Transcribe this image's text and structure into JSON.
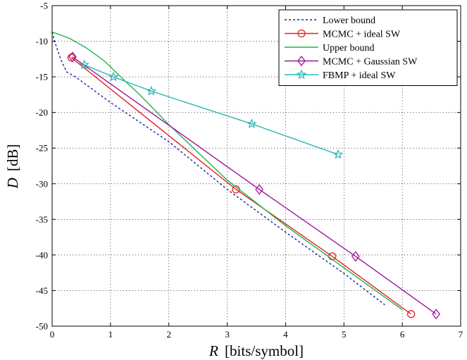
{
  "chart_data": {
    "type": "line",
    "xlabel": {
      "var": "R",
      "unit": "[bits/symbol]"
    },
    "ylabel": {
      "var": "D",
      "unit": "[dB]"
    },
    "xlim": [
      0,
      7
    ],
    "ylim": [
      -50,
      -5
    ],
    "xticks": [
      "0",
      "1",
      "2",
      "3",
      "4",
      "5",
      "6",
      "7"
    ],
    "yticks": [
      "-5",
      "-10",
      "-15",
      "-20",
      "-25",
      "-30",
      "-35",
      "-40",
      "-45",
      "-50"
    ],
    "grid": true,
    "legend_position": "top-right",
    "series": [
      {
        "name": "Lower bound",
        "color": "#1f1fa0",
        "line": "dotted",
        "marker": "none",
        "x": [
          0,
          0.05,
          0.15,
          0.25,
          0.4,
          0.7,
          1.0,
          2.0,
          3.0,
          4.0,
          5.0,
          5.7
        ],
        "y": [
          -8.7,
          -10.2,
          -12.6,
          -14.3,
          -15.0,
          -16.8,
          -18.6,
          -24.1,
          -30.8,
          -36.8,
          -42.6,
          -47.0
        ]
      },
      {
        "name": "MCMC + ideal SW",
        "color": "#e32222",
        "line": "solid",
        "marker": "circle",
        "x": [
          0.33,
          3.15,
          4.8,
          6.15
        ],
        "y": [
          -12.3,
          -30.8,
          -40.2,
          -48.3
        ]
      },
      {
        "name": "Upper bound",
        "color": "#1fb34a",
        "line": "solid",
        "marker": "none",
        "x": [
          0,
          0.3,
          0.6,
          0.9,
          1.2,
          1.5,
          2.0,
          3.0,
          4.0,
          5.0,
          6.0
        ],
        "y": [
          -8.7,
          -9.6,
          -11.0,
          -12.8,
          -15.2,
          -17.5,
          -21.7,
          -29.5,
          -35.9,
          -41.8,
          -47.7
        ]
      },
      {
        "name": "MCMC + Gaussian SW",
        "color": "#a0159a",
        "line": "solid",
        "marker": "diamond",
        "x": [
          0.35,
          3.55,
          5.2,
          6.58
        ],
        "y": [
          -12.2,
          -30.8,
          -40.2,
          -48.3
        ]
      },
      {
        "name": "FBMP + ideal SW",
        "color": "#2ab7b4",
        "line": "solid",
        "marker": "star",
        "x": [
          0.55,
          1.05,
          1.7,
          3.42,
          4.9
        ],
        "y": [
          -13.3,
          -15.0,
          -17.0,
          -21.6,
          -25.9
        ]
      }
    ]
  }
}
